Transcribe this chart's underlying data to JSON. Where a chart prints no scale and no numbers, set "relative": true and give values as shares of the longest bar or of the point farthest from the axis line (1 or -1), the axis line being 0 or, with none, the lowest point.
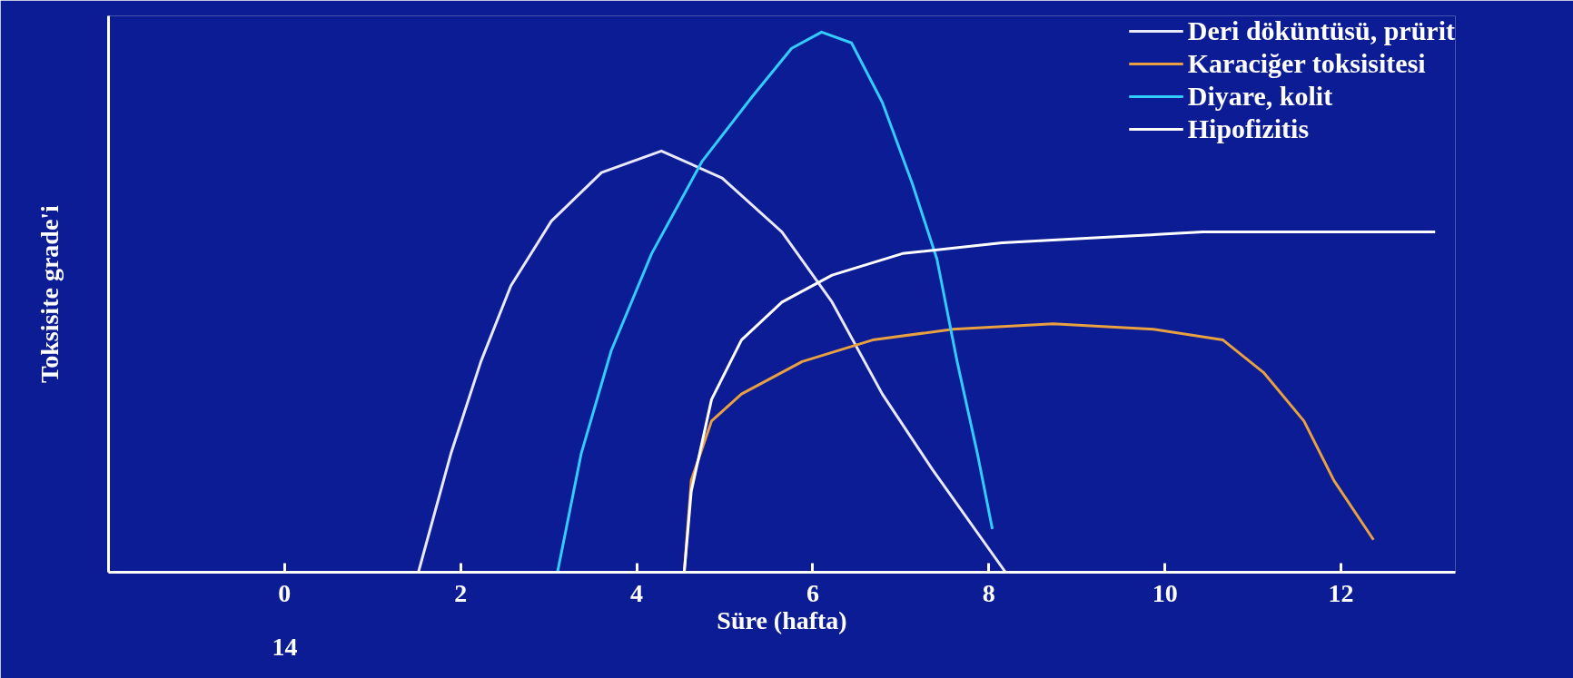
{
  "chart_data": {
    "type": "line",
    "xlabel": "Süre (hafta)",
    "ylabel": "Toksisite grade'i",
    "relative": true,
    "xlim": [
      -2,
      13.3
    ],
    "xticks": [
      0,
      2,
      4,
      6,
      8,
      10,
      12
    ],
    "tick_labels": "x",
    "legend": "top right",
    "line_style": "solid",
    "annotations": [
      "14"
    ],
    "series": [
      {
        "name": "Deri döküntüsü, prürit",
        "color": "#e8e8ff",
        "x": [
          1.52,
          1.89,
          2.23,
          2.57,
          3.03,
          3.6,
          4.28,
          4.97,
          5.65,
          6.22,
          6.79,
          7.36,
          8.19
        ],
        "values": [
          0,
          0.22,
          0.39,
          0.53,
          0.65,
          0.74,
          0.78,
          0.73,
          0.63,
          0.5,
          0.33,
          0.19,
          0
        ]
      },
      {
        "name": "Karaciğer toksisitesi",
        "color": "#e8a040",
        "x": [
          4.54,
          4.62,
          4.85,
          5.19,
          5.88,
          6.68,
          7.59,
          8.73,
          9.87,
          10.66,
          11.12,
          11.58,
          11.92,
          12.37
        ],
        "values": [
          0,
          0.17,
          0.28,
          0.33,
          0.39,
          0.43,
          0.45,
          0.46,
          0.45,
          0.43,
          0.37,
          0.28,
          0.17,
          0.06
        ]
      },
      {
        "name": "Diyare, kolit",
        "color": "#33ccff",
        "x": [
          3.1,
          3.37,
          3.71,
          4.17,
          4.74,
          5.31,
          5.76,
          6.1,
          6.44,
          6.79,
          7.13,
          7.41,
          7.64,
          7.87,
          8.04
        ],
        "values": [
          0,
          0.22,
          0.41,
          0.59,
          0.76,
          0.88,
          0.97,
          1.0,
          0.98,
          0.87,
          0.72,
          0.58,
          0.39,
          0.22,
          0.08
        ]
      },
      {
        "name": "Hipofizitis",
        "color": "#ffffff",
        "x": [
          4.54,
          4.62,
          4.85,
          5.19,
          5.65,
          6.22,
          7.02,
          8.15,
          9.3,
          10.43,
          13.07
        ],
        "values": [
          0,
          0.15,
          0.32,
          0.43,
          0.5,
          0.55,
          0.59,
          0.61,
          0.62,
          0.63,
          0.63
        ]
      }
    ]
  }
}
